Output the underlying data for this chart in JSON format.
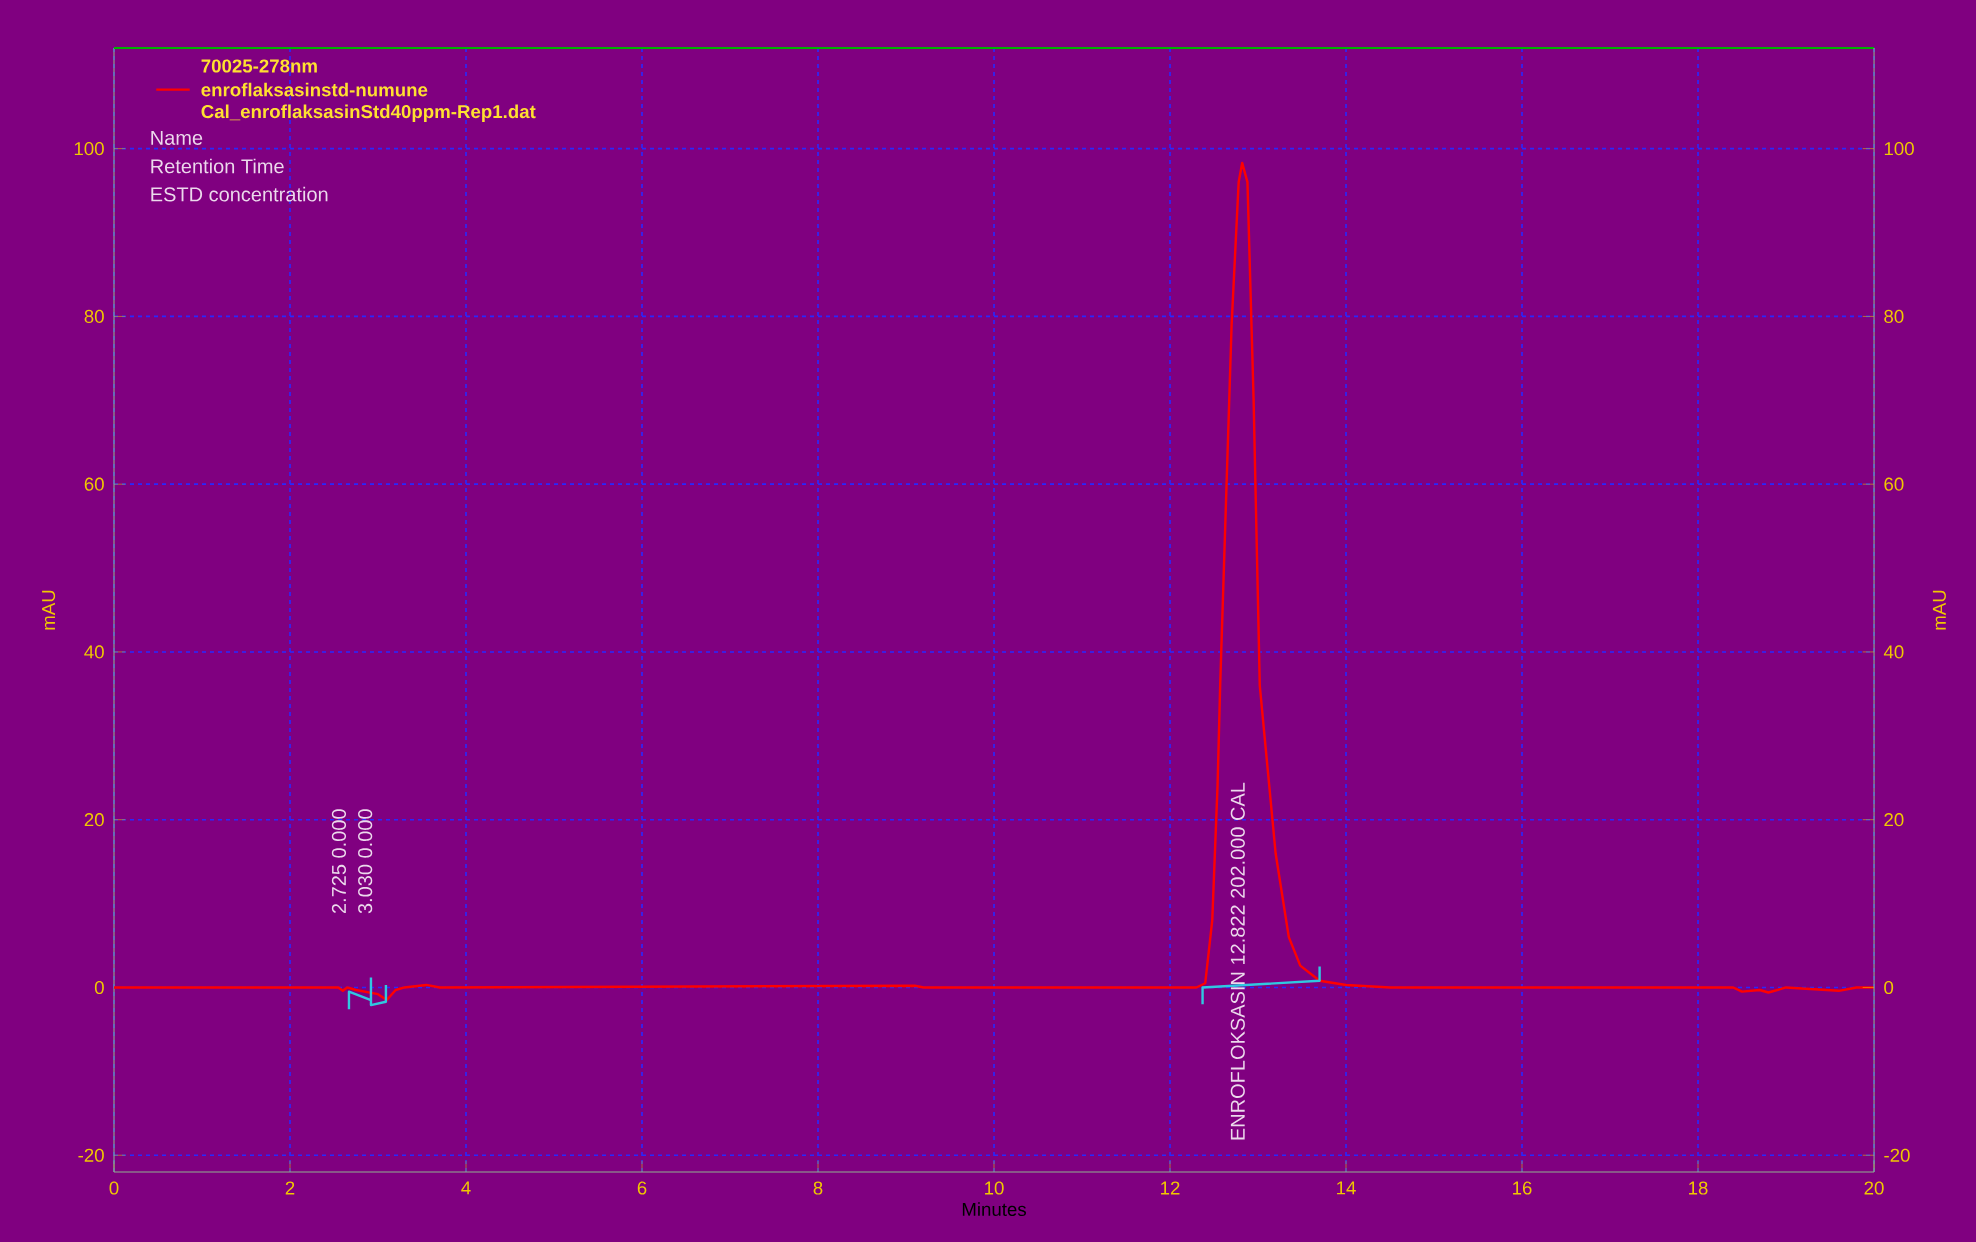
{
  "chart_data": {
    "type": "line",
    "legend_title": "70025-278nm",
    "xlabel": "Minutes",
    "ylabel": "mAU",
    "y2label": "mAU",
    "xlim": [
      0,
      20
    ],
    "xticks": [
      0,
      2,
      4,
      6,
      8,
      10,
      12,
      14,
      16,
      18,
      20
    ],
    "ylim": [
      -22,
      112
    ],
    "yticks": [
      -20,
      0,
      20,
      40,
      60,
      80,
      100
    ],
    "y2lim": [
      -22,
      112
    ],
    "y2ticks": [
      -20,
      0,
      20,
      40,
      60,
      80,
      100
    ],
    "grid": true,
    "legend": "top left",
    "marker": "none",
    "line_style": "solid",
    "series": [
      {
        "name": "enroflaksasinstd-numune",
        "color": "#ff0000",
        "x": [
          0,
          2.55,
          2.6,
          2.65,
          2.75,
          3.0,
          3.1,
          3.2,
          3.3,
          3.55,
          3.7,
          9.1,
          9.2,
          12.3,
          12.4,
          12.48,
          12.54,
          12.57,
          12.7,
          12.78,
          12.82,
          12.88,
          12.95,
          13.02,
          13.2,
          13.35,
          13.48,
          13.7,
          14.0,
          14.5,
          18.4,
          18.5,
          18.7,
          18.8,
          19.0,
          19.6,
          19.8,
          20
        ],
        "values": [
          0,
          0,
          -0.4,
          0,
          -0.3,
          -0.8,
          -1.5,
          -0.3,
          0,
          0.3,
          0,
          0.2,
          0,
          0,
          0.5,
          8,
          24,
          36,
          79,
          96,
          98.3,
          96,
          70,
          36,
          16,
          6,
          2.6,
          0.8,
          0.3,
          0,
          0,
          -0.5,
          -0.3,
          -0.6,
          0,
          -0.4,
          0,
          0
        ]
      },
      {
        "color": "#30c8e0",
        "x": [
          2.67,
          2.67,
          2.92
        ],
        "values": [
          -2.6,
          -0.5,
          -1.5
        ]
      },
      {
        "color": "#30c8e0",
        "x": [
          2.92,
          2.92,
          3.09,
          3.09
        ],
        "values": [
          1.2,
          -2.1,
          -1.7,
          0.3
        ]
      },
      {
        "color": "#30c8e0",
        "x": [
          12.37,
          12.37,
          13.7,
          13.7
        ],
        "values": [
          -2,
          0,
          0.8,
          2.5
        ]
      }
    ],
    "annotations": [
      "Cal_enroflaksasinStd40ppm-Rep1.dat",
      "Name",
      "Retention Time",
      "ESTD concentration",
      "2.725  0.000",
      "3.030  0.000",
      "ENROFLOKSASIN  12.822  202.000 CAL"
    ]
  }
}
